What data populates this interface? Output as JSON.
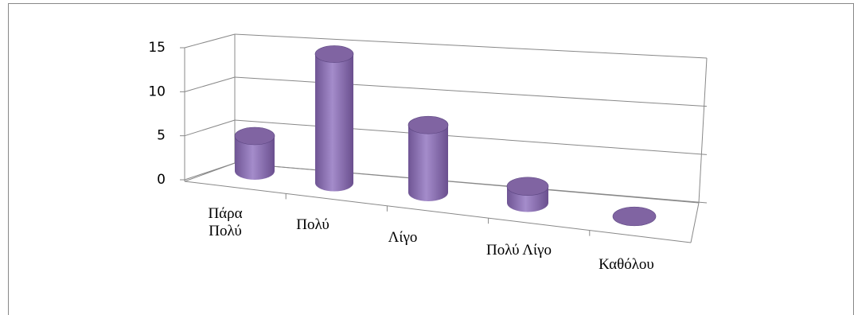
{
  "chart_data": {
    "type": "bar",
    "style": "3d-cylinder",
    "categories": [
      "Πάρα Πολύ",
      "Πολύ",
      "Λίγο",
      "Πολύ Λίγο",
      "Καθόλου"
    ],
    "values": [
      4,
      15,
      8,
      2,
      0
    ],
    "color": "#8064a2",
    "ylim": [
      0,
      15
    ],
    "yticks": [
      0,
      5,
      10,
      15
    ],
    "grid": true
  }
}
